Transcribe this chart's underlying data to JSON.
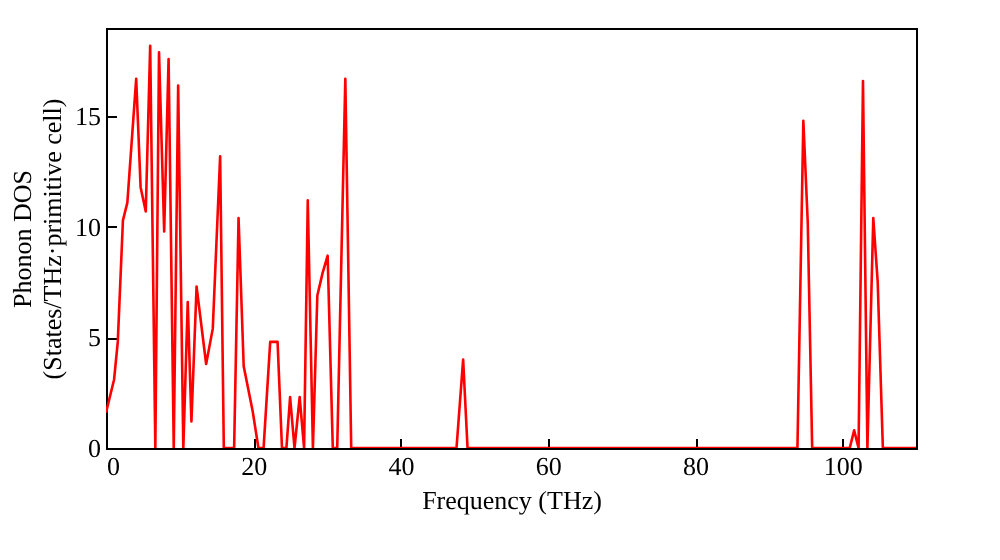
{
  "chart_data": {
    "type": "line",
    "xlabel": "Frequency (THz)",
    "ylabel": "Phonon DOS\n(States/THz·primitive cell)",
    "x": [
      0,
      1.1,
      1.6,
      2.3,
      2.9,
      4.1,
      4.7,
      5.4,
      6.0,
      6.7,
      7.2,
      7.9,
      8.5,
      9.2,
      9.8,
      10.5,
      11.1,
      11.6,
      12.3,
      13.6,
      14.5,
      15.5,
      16.0,
      17.4,
      18.0,
      18.7,
      19.9,
      20.7,
      21.4,
      22.3,
      23.3,
      23.9,
      24.5,
      25.0,
      25.6,
      26.3,
      26.9,
      27.4,
      28.1,
      28.7,
      29.4,
      30.1,
      30.8,
      31.4,
      32.5,
      33.3,
      47.6,
      48.5,
      49.1,
      93.9,
      94.7,
      95.3,
      95.9,
      101.0,
      101.6,
      102.2,
      102.8,
      103.4,
      104.2,
      104.8,
      105.5,
      110
    ],
    "series": [
      {
        "color": "#ff0000",
        "values": [
          1.6,
          3.1,
          4.8,
          10.3,
          11.1,
          16.7,
          11.8,
          10.7,
          18.2,
          0,
          17.9,
          9.8,
          17.6,
          0,
          16.4,
          0,
          6.6,
          1.2,
          7.3,
          3.8,
          5.4,
          13.2,
          0,
          0,
          10.4,
          3.7,
          1.7,
          0,
          0,
          4.8,
          4.8,
          0,
          0,
          2.3,
          0,
          2.3,
          0,
          11.2,
          0,
          6.9,
          7.9,
          8.7,
          0,
          0,
          16.7,
          0,
          0,
          4.0,
          0,
          0,
          14.8,
          10.2,
          0,
          0,
          0.8,
          0,
          16.6,
          0,
          10.4,
          7.5,
          0,
          0
        ]
      }
    ],
    "xlim": [
      0,
      110
    ],
    "xticks": [
      0,
      20,
      40,
      60,
      80,
      100
    ],
    "ylim": [
      0,
      19
    ],
    "yticks": [
      0,
      5,
      10,
      15
    ],
    "marker": "none",
    "line_style": "solid"
  }
}
